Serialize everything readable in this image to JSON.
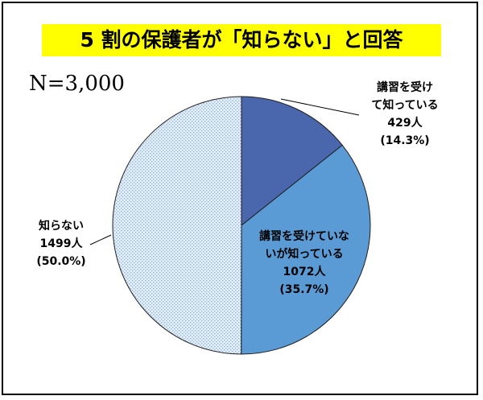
{
  "chart_data": {
    "type": "pie",
    "title": "5 割の保護者が「知らない」と回答",
    "annotation": "N=3,000",
    "start": "12 o'clock, clockwise",
    "slices": [
      {
        "lines": [
          "講習を受け",
          "て知っている",
          "429人",
          "(14.3%)"
        ],
        "value": 429,
        "percent": 14.3,
        "color": "#4A66AC",
        "pattern": "solid"
      },
      {
        "lines": [
          "講習を受けていな",
          "いが知っている",
          "1072人",
          "(35.7%)"
        ],
        "value": 1072,
        "percent": 35.7,
        "color": "#5B9BD5",
        "pattern": "solid"
      },
      {
        "lines": [
          "知らない",
          "1499人",
          "(50.0%)"
        ],
        "value": 1499,
        "percent": 50.0,
        "color": "#DEEBF7",
        "pattern": "dotted"
      }
    ]
  },
  "colors": {
    "title_highlight": "#FFFF00",
    "outline": "#1F1F1F"
  }
}
